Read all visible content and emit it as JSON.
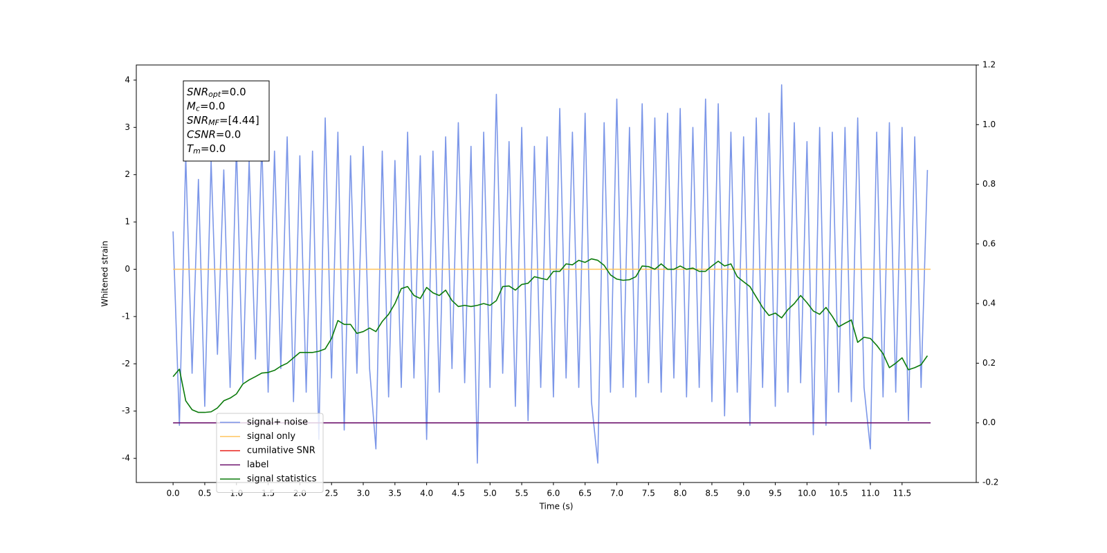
{
  "chart_data": {
    "type": "line",
    "xlabel": "Time (s)",
    "ylabel": "Whitened strain",
    "xlim": [
      -0.58,
      12.67
    ],
    "ylim": [
      -4.51,
      4.32
    ],
    "y2lim": [
      -0.2,
      1.2
    ],
    "xticks": [
      {
        "value": 0,
        "label": "0.0"
      },
      0.5,
      {
        "value": 1,
        "label": "1.0"
      },
      1.5,
      {
        "value": 2,
        "label": "2.0"
      },
      2.5,
      {
        "value": 3,
        "label": "3.0"
      },
      3.5,
      {
        "value": 4,
        "label": "4.0"
      },
      4.5,
      {
        "value": 5,
        "label": "5.0"
      },
      5.5,
      {
        "value": 6,
        "label": "6.0"
      },
      6.5,
      {
        "value": 7,
        "label": "7.0"
      },
      7.5,
      {
        "value": 8,
        "label": "8.0"
      },
      8.5,
      {
        "value": 9,
        "label": "9.0"
      },
      9.5,
      {
        "value": 10,
        "label": "10.0"
      },
      10.5,
      {
        "value": 11,
        "label": "11.0"
      },
      11.5
    ],
    "yticks": [
      -4,
      -3,
      -2,
      -1,
      0,
      1,
      2,
      3,
      4
    ],
    "y2ticks": [
      -0.2,
      {
        "value": 0,
        "label": "0.0"
      },
      0.2,
      0.4,
      0.6,
      0.8,
      {
        "value": 1,
        "label": "1.0"
      },
      1.2
    ],
    "annotations": [
      {
        "text": "SNR",
        "sub": "opt",
        "rest": "=0.0"
      },
      {
        "text": "M",
        "sub": "c",
        "rest": "=0.0"
      },
      {
        "text": "SNR",
        "sub": "MF",
        "rest": "=[4.44]"
      },
      {
        "text": "CSNR",
        "rest": "=0.0"
      },
      {
        "text": "T",
        "sub": "m",
        "rest": "=0.0"
      }
    ],
    "x": [
      0,
      0.1,
      0.2,
      0.3,
      0.4,
      0.5,
      0.6,
      0.7,
      0.8,
      0.9,
      1,
      1.1,
      1.2,
      1.3,
      1.4,
      1.5,
      1.6,
      1.7,
      1.8,
      1.9,
      2,
      2.1,
      2.2,
      2.3,
      2.4,
      2.5,
      2.6,
      2.7,
      2.8,
      2.9,
      3,
      3.1,
      3.2,
      3.3,
      3.4,
      3.5,
      3.6,
      3.7,
      3.8,
      3.9,
      4,
      4.1,
      4.2,
      4.3,
      4.4,
      4.5,
      4.6,
      4.7,
      4.8,
      4.9,
      5,
      5.1,
      5.2,
      5.3,
      5.4,
      5.5,
      5.6,
      5.7,
      5.8,
      5.9,
      6,
      6.1,
      6.2,
      6.3,
      6.4,
      6.5,
      6.6,
      6.7,
      6.8,
      6.9,
      7,
      7.1,
      7.2,
      7.3,
      7.4,
      7.5,
      7.6,
      7.7,
      7.8,
      7.9,
      8,
      8.1,
      8.2,
      8.3,
      8.4,
      8.5,
      8.6,
      8.7,
      8.8,
      8.9,
      9,
      9.1,
      9.2,
      9.3,
      9.4,
      9.5,
      9.6,
      9.7,
      9.8,
      9.9,
      10,
      10.1,
      10.2,
      10.3,
      10.4,
      10.5,
      10.6,
      10.7,
      10.8,
      10.9,
      11,
      11.1,
      11.2,
      11.3,
      11.4,
      11.5,
      11.6,
      11.7,
      11.8,
      11.9
    ],
    "legend": "lower left",
    "series": [
      {
        "name": "signal+ noise",
        "color": "#7b96e8",
        "values": [
          0.8,
          -3.3,
          2.4,
          -2.2,
          1.9,
          -2.9,
          2.3,
          -1.8,
          2.1,
          -2.5,
          2.6,
          -2.4,
          2.3,
          -1.9,
          2.7,
          -2.6,
          2.5,
          -2.1,
          2.8,
          -2.8,
          2.4,
          -2.6,
          2.5,
          -3.6,
          3.2,
          -2.3,
          2.9,
          -3.4,
          2.4,
          -2.2,
          2.6,
          -2.1,
          -3.8,
          2.5,
          -2.7,
          2.3,
          -2.5,
          2.9,
          -2.3,
          2.4,
          -3.6,
          2.5,
          -2.6,
          2.8,
          -2.1,
          3.1,
          -2.4,
          2.6,
          -4.1,
          2.9,
          -2.5,
          3.7,
          -2.2,
          2.7,
          -2.9,
          3.0,
          -3.2,
          2.6,
          -2.5,
          2.8,
          -2.7,
          3.4,
          -2.3,
          2.9,
          -2.5,
          3.3,
          -2.8,
          -4.1,
          3.1,
          -2.6,
          3.6,
          -2.5,
          3.0,
          -2.7,
          3.5,
          -2.4,
          3.2,
          -2.6,
          3.3,
          -2.3,
          3.4,
          -2.7,
          3.0,
          -2.5,
          3.6,
          -2.8,
          3.5,
          -3.1,
          2.9,
          -2.6,
          2.8,
          -3.3,
          3.2,
          -2.5,
          3.3,
          -2.9,
          3.9,
          -2.6,
          3.1,
          -2.4,
          2.7,
          -3.5,
          3.0,
          -3.3,
          2.9,
          -2.6,
          3.0,
          -2.8,
          3.2,
          -2.5,
          -3.8,
          2.9,
          -2.7,
          3.1,
          -2.6,
          3.0,
          -3.2,
          2.8,
          -2.5,
          2.1
        ]
      },
      {
        "name": "signal only",
        "color": "#ffc35a",
        "x": [
          0,
          11.95
        ],
        "values": [
          0,
          0
        ]
      },
      {
        "name": "cumilative SNR",
        "color": "#e8201a",
        "x": [],
        "values": []
      },
      {
        "name": "label",
        "color": "#6b0f6b",
        "axis": "y2",
        "x": [
          0,
          11.95
        ],
        "values": [
          0,
          0
        ]
      },
      {
        "name": "signal statistics",
        "color": "#0a7a0a",
        "axis": "y2",
        "values": [
          0.155,
          0.18,
          0.074,
          0.044,
          0.035,
          0.035,
          0.037,
          0.05,
          0.074,
          0.083,
          0.097,
          0.13,
          0.144,
          0.155,
          0.167,
          0.169,
          0.176,
          0.19,
          0.2,
          0.218,
          0.236,
          0.236,
          0.236,
          0.24,
          0.248,
          0.283,
          0.343,
          0.33,
          0.33,
          0.3,
          0.306,
          0.318,
          0.306,
          0.34,
          0.364,
          0.4,
          0.45,
          0.457,
          0.427,
          0.417,
          0.454,
          0.436,
          0.427,
          0.445,
          0.41,
          0.39,
          0.394,
          0.39,
          0.394,
          0.4,
          0.394,
          0.41,
          0.457,
          0.459,
          0.445,
          0.464,
          0.468,
          0.49,
          0.485,
          0.48,
          0.508,
          0.508,
          0.533,
          0.53,
          0.545,
          0.538,
          0.55,
          0.545,
          0.528,
          0.496,
          0.482,
          0.478,
          0.48,
          0.49,
          0.526,
          0.524,
          0.515,
          0.533,
          0.515,
          0.515,
          0.526,
          0.515,
          0.519,
          0.508,
          0.508,
          0.526,
          0.542,
          0.526,
          0.533,
          0.49,
          0.473,
          0.457,
          0.422,
          0.387,
          0.36,
          0.368,
          0.352,
          0.38,
          0.4,
          0.427,
          0.403,
          0.375,
          0.364,
          0.387,
          0.357,
          0.322,
          0.334,
          0.345,
          0.27,
          0.287,
          0.283,
          0.26,
          0.232,
          0.185,
          0.2,
          0.218,
          0.178,
          0.185,
          0.195,
          0.225
        ]
      }
    ]
  }
}
